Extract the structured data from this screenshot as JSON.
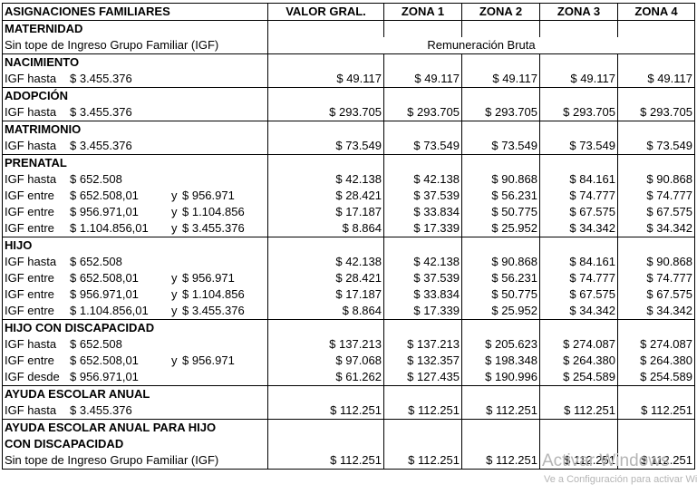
{
  "header": [
    "ASIGNACIONES FAMILIARES",
    "VALOR GRAL.",
    "ZONA 1",
    "ZONA 2",
    "ZONA 3",
    "ZONA 4"
  ],
  "maternidad": {
    "title": "MATERNIDAD",
    "note": "Sin tope de Ingreso Grupo Familiar (IGF)",
    "value": "Remuneración Bruta"
  },
  "nacimiento": {
    "title": "NACIMIENTO",
    "rows": [
      {
        "k": "IGF hasta",
        "a": "$ 3.455.376",
        "y": "",
        "b": "",
        "v": [
          "$ 49.117",
          "$ 49.117",
          "$ 49.117",
          "$ 49.117",
          "$ 49.117"
        ]
      }
    ]
  },
  "adopcion": {
    "title": "ADOPCIÓN",
    "rows": [
      {
        "k": "IGF hasta",
        "a": "$ 3.455.376",
        "y": "",
        "b": "",
        "v": [
          "$ 293.705",
          "$ 293.705",
          "$ 293.705",
          "$ 293.705",
          "$ 293.705"
        ]
      }
    ]
  },
  "matrimonio": {
    "title": "MATRIMONIO",
    "rows": [
      {
        "k": "IGF hasta",
        "a": "$ 3.455.376",
        "y": "",
        "b": "",
        "v": [
          "$ 73.549",
          "$ 73.549",
          "$ 73.549",
          "$ 73.549",
          "$ 73.549"
        ]
      }
    ]
  },
  "prenatal": {
    "title": "PRENATAL",
    "rows": [
      {
        "k": "IGF hasta",
        "a": "$ 652.508",
        "y": "",
        "b": "",
        "v": [
          "$ 42.138",
          "$ 42.138",
          "$ 90.868",
          "$ 84.161",
          "$ 90.868"
        ]
      },
      {
        "k": "IGF entre",
        "a": "$ 652.508,01",
        "y": "y",
        "b": "$ 956.971",
        "v": [
          "$ 28.421",
          "$ 37.539",
          "$ 56.231",
          "$ 74.777",
          "$ 74.777"
        ]
      },
      {
        "k": "IGF entre",
        "a": "$ 956.971,01",
        "y": "y",
        "b": "$ 1.104.856",
        "v": [
          "$ 17.187",
          "$ 33.834",
          "$ 50.775",
          "$ 67.575",
          "$ 67.575"
        ]
      },
      {
        "k": "IGF entre",
        "a": "$ 1.104.856,01",
        "y": "y",
        "b": "$ 3.455.376",
        "v": [
          "$ 8.864",
          "$ 17.339",
          "$ 25.952",
          "$ 34.342",
          "$ 34.342"
        ]
      }
    ]
  },
  "hijo": {
    "title": "HIJO",
    "rows": [
      {
        "k": "IGF hasta",
        "a": "$ 652.508",
        "y": "",
        "b": "",
        "v": [
          "$ 42.138",
          "$ 42.138",
          "$ 90.868",
          "$ 84.161",
          "$ 90.868"
        ]
      },
      {
        "k": "IGF entre",
        "a": "$ 652.508,01",
        "y": "y",
        "b": "$ 956.971",
        "v": [
          "$ 28.421",
          "$ 37.539",
          "$ 56.231",
          "$ 74.777",
          "$ 74.777"
        ]
      },
      {
        "k": "IGF entre",
        "a": "$ 956.971,01",
        "y": "y",
        "b": "$ 1.104.856",
        "v": [
          "$ 17.187",
          "$ 33.834",
          "$ 50.775",
          "$ 67.575",
          "$ 67.575"
        ]
      },
      {
        "k": "IGF entre",
        "a": "$ 1.104.856,01",
        "y": "y",
        "b": "$ 3.455.376",
        "v": [
          "$ 8.864",
          "$ 17.339",
          "$ 25.952",
          "$ 34.342",
          "$ 34.342"
        ]
      }
    ]
  },
  "hijo_discapacidad": {
    "title": "HIJO CON DISCAPACIDAD",
    "rows": [
      {
        "k": "IGF hasta",
        "a": "$ 652.508",
        "y": "",
        "b": "",
        "v": [
          "$ 137.213",
          "$ 137.213",
          "$ 205.623",
          "$ 274.087",
          "$ 274.087"
        ]
      },
      {
        "k": "IGF entre",
        "a": "$ 652.508,01",
        "y": "y",
        "b": "$ 956.971",
        "v": [
          "$ 97.068",
          "$ 132.357",
          "$ 198.348",
          "$ 264.380",
          "$ 264.380"
        ]
      },
      {
        "k": "IGF desde",
        "a": "$ 956.971,01",
        "y": "",
        "b": "",
        "v": [
          "$ 61.262",
          "$ 127.435",
          "$ 190.996",
          "$ 254.589",
          "$ 254.589"
        ]
      }
    ]
  },
  "ayuda_escolar": {
    "title": "AYUDA ESCOLAR ANUAL",
    "rows": [
      {
        "k": "IGF hasta",
        "a": "$ 3.455.376",
        "y": "",
        "b": "",
        "v": [
          "$ 112.251",
          "$ 112.251",
          "$ 112.251",
          "$ 112.251",
          "$ 112.251"
        ]
      }
    ]
  },
  "ayuda_escolar_disc": {
    "title1": "AYUDA ESCOLAR ANUAL PARA HIJO",
    "title2": "CON DISCAPACIDAD",
    "note": "Sin tope de Ingreso Grupo Familiar (IGF)",
    "v": [
      "$ 112.251",
      "$ 112.251",
      "$ 112.251",
      "$ 112.251",
      "$ 112.251"
    ]
  },
  "watermark": {
    "line1": "Activar Windows",
    "line2": "Ve a Configuración para activar Windows."
  }
}
